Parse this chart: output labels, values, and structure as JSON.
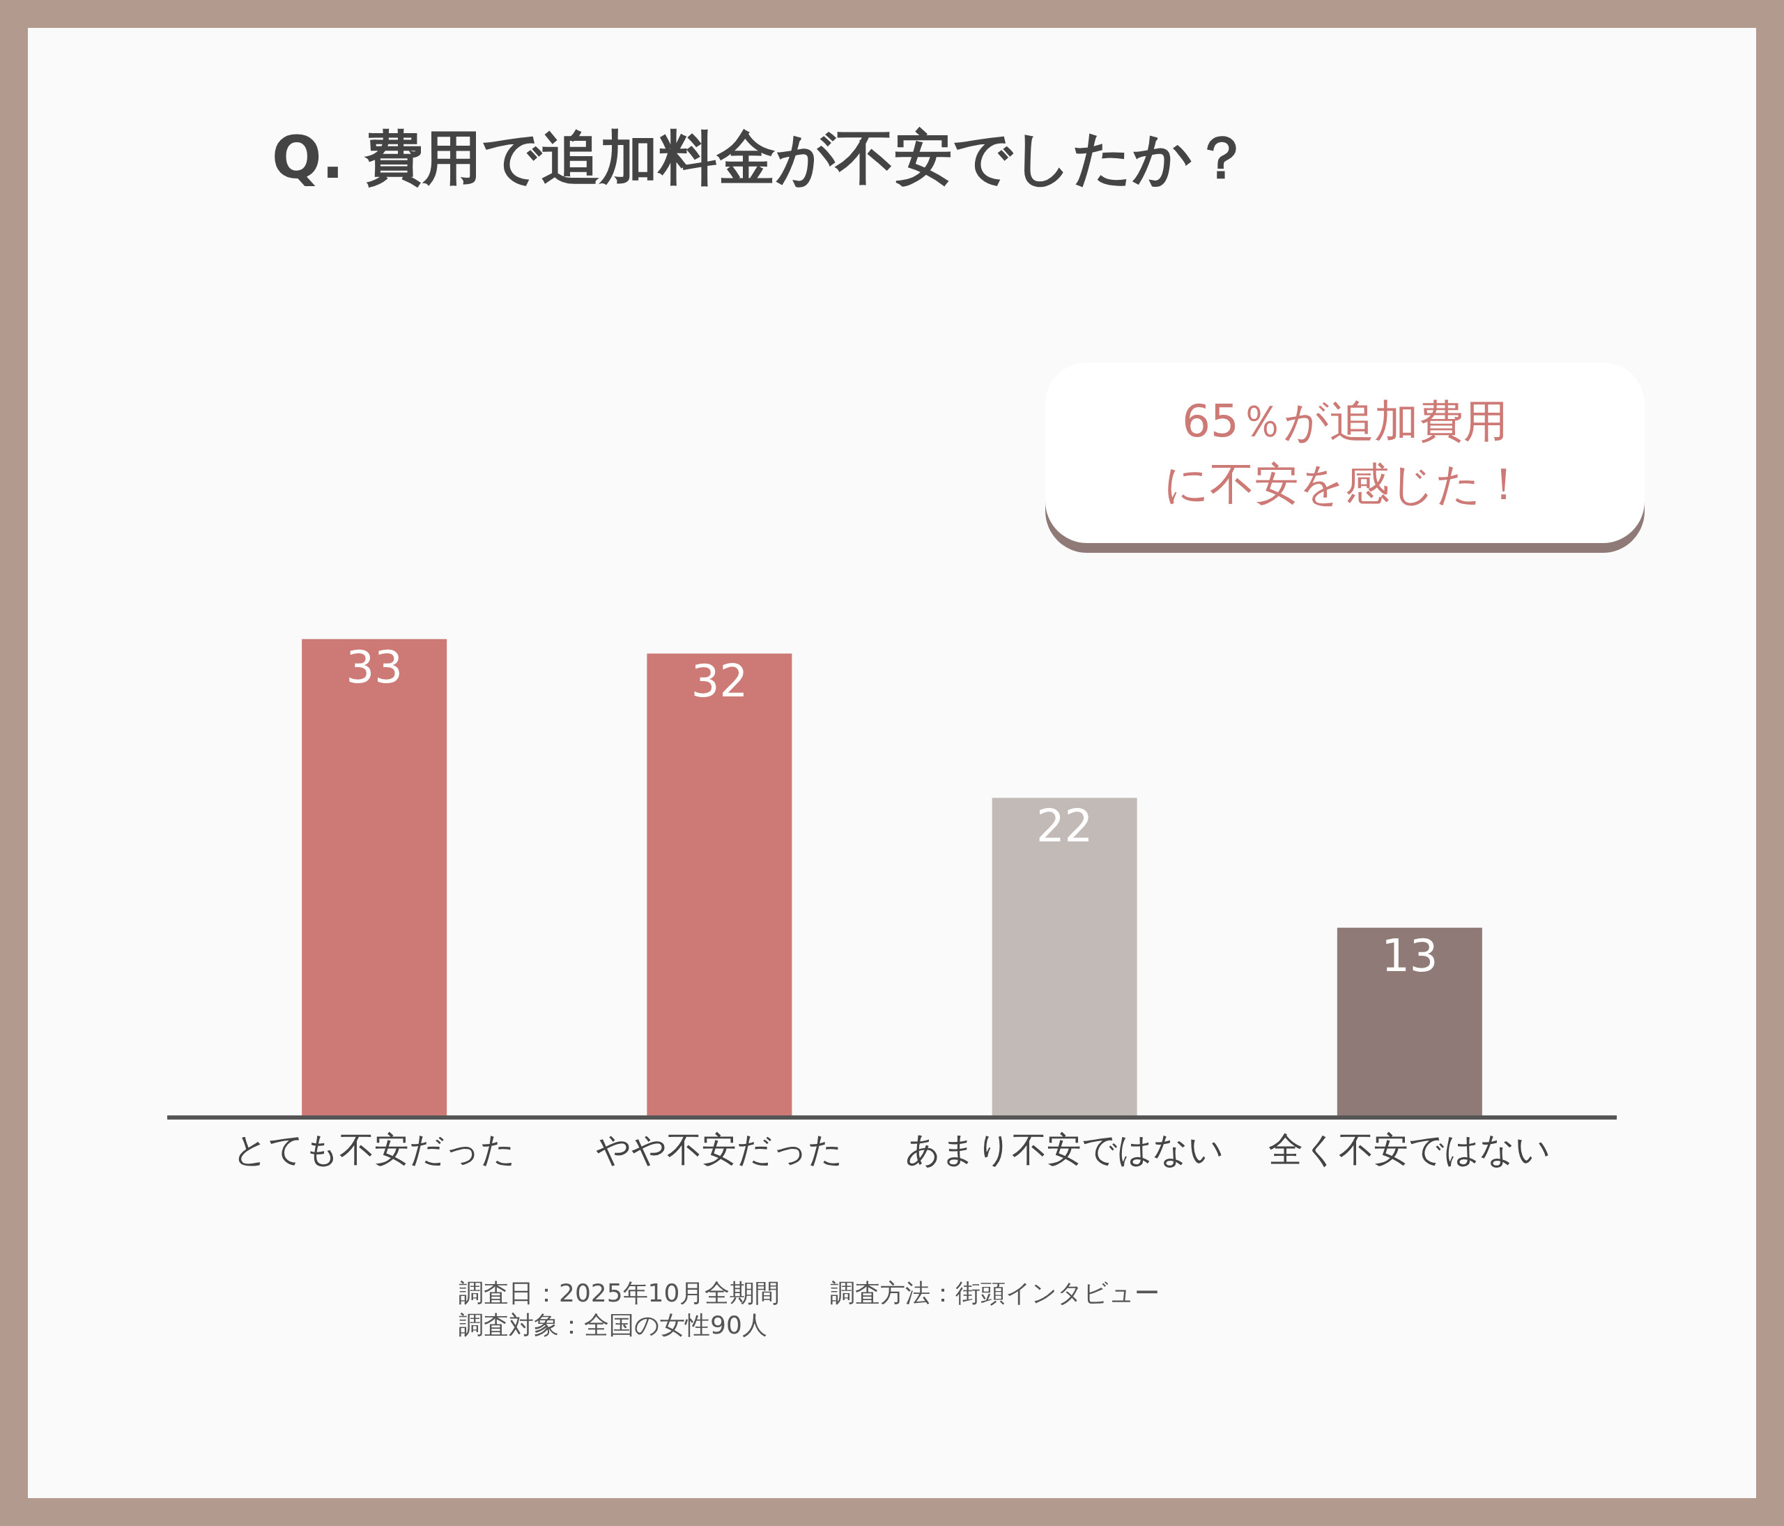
{
  "chart_data": {
    "type": "bar",
    "title": "Q. 費用で追加料金が不安でしたか？",
    "categories": [
      "とても不安だった",
      "やや不安だった",
      "あまり不安ではない",
      "全く不安ではない"
    ],
    "values": [
      33,
      32,
      22,
      13
    ],
    "colors": [
      "#cd7a76",
      "#cd7a76",
      "#c2bab6",
      "#8f7a78"
    ],
    "data_labels": true,
    "grid": false,
    "legend": false,
    "annotations": [
      "65％が追加費用に不安を感じた！",
      "調査日：2025年10月全期間　　調査方法：街頭インタビュー",
      "調査対象：全国の女性90人"
    ]
  }
}
